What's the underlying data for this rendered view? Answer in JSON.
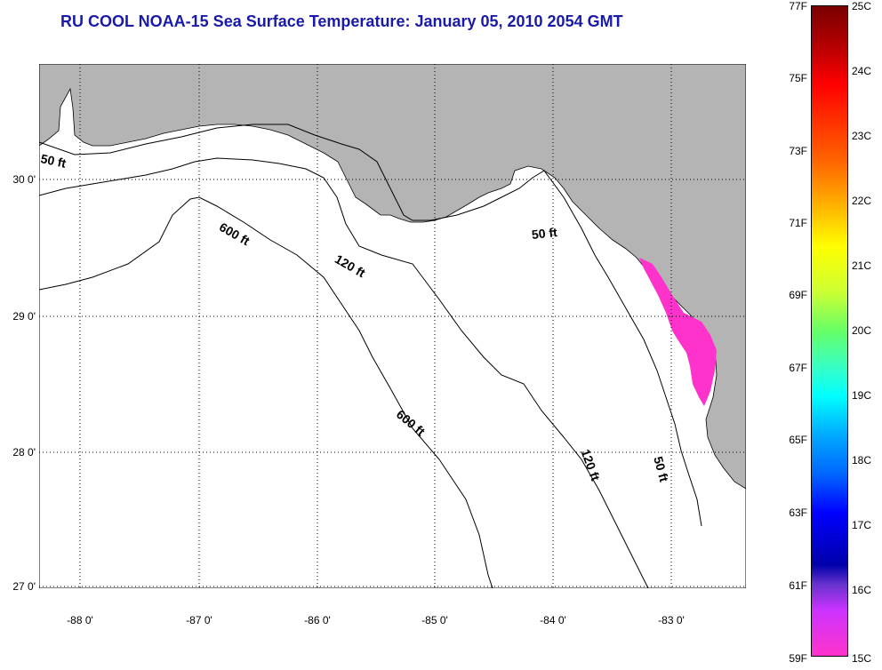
{
  "title": "RU COOL  NOAA-15  Sea Surface Temperature:  January 05, 2010 2054 GMT",
  "lat_labels": [
    "30 0'",
    "29 0'",
    "28 0'",
    "27 0'"
  ],
  "lon_labels": [
    "-88 0'",
    "-87 0'",
    "-86 0'",
    "-85 0'",
    "-84 0'",
    "-83 0'"
  ],
  "contour_labels": [
    "50 ft",
    "600 ft",
    "120 ft",
    "50 ft",
    "600 ft",
    "120 ft",
    "50 ft"
  ],
  "colorbar": {
    "fahrenheit": [
      "77F",
      "75F",
      "73F",
      "71F",
      "69F",
      "67F",
      "65F",
      "63F",
      "61F",
      "59F"
    ],
    "celsius": [
      "25C",
      "24C",
      "23C",
      "22C",
      "21C",
      "20C",
      "19C",
      "18C",
      "17C",
      "16C",
      "15C"
    ]
  },
  "colors": {
    "land": "#b4b4b4",
    "water": "#ffffff",
    "title": "#1a1aa8",
    "sst_patch": "#ff33cc"
  }
}
